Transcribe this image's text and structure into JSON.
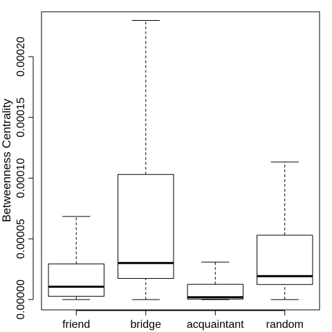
{
  "chart_data": {
    "type": "boxplot",
    "title": "",
    "xlabel": "",
    "ylabel": "Betweenness Centrality",
    "categories": [
      "friend",
      "bridge",
      "acquaintant",
      "random"
    ],
    "boxes": [
      {
        "category": "friend",
        "min": 0.0,
        "q1": 2.7e-06,
        "median": 1.06e-05,
        "q3": 2.93e-05,
        "max": 6.84e-05
      },
      {
        "category": "bridge",
        "min": 0.0,
        "q1": 1.74e-05,
        "median": 3.01e-05,
        "q3": 0.000103,
        "max": 0.0002299
      },
      {
        "category": "acquaintant",
        "min": 0.0,
        "q1": 4e-07,
        "median": 1.9e-06,
        "q3": 1.25e-05,
        "max": 3.08e-05
      },
      {
        "category": "random",
        "min": 0.0,
        "q1": 1.24e-05,
        "median": 1.93e-05,
        "q3": 5.3e-05,
        "max": 0.0001133
      }
    ],
    "ylim": [
      -8.5e-06,
      0.000237
    ],
    "yticks": [
      0,
      5e-05,
      0.0001,
      0.00015,
      0.0002
    ],
    "ytick_labels": [
      "0.00000",
      "0.00005",
      "0.00010",
      "0.00015",
      "0.00020"
    ],
    "grid": false,
    "legend": "none"
  }
}
